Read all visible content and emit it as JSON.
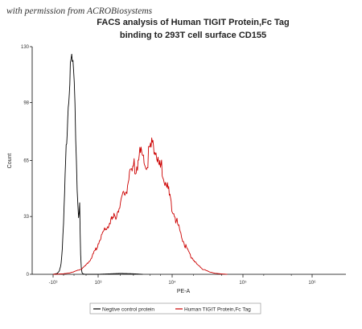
{
  "watermark": "with permission from ACROBiosystems",
  "chart_data": {
    "type": "line",
    "title_line1": "FACS analysis of Human TIGIT Protein,Fc Tag",
    "title_line2": "binding to 293T cell surface CD155",
    "xlabel": "PE-A",
    "ylabel": "Count",
    "ylim": [
      0,
      130
    ],
    "y_ticks": [
      "0",
      "33",
      "65",
      "98",
      "130"
    ],
    "y_tick_values": [
      0,
      33,
      65,
      98,
      130
    ],
    "x_ticks": [
      "-10³",
      "10³",
      "10⁴",
      "10⁵",
      "10⁶"
    ],
    "x_scale": "biexponential",
    "grid": false,
    "legend_position": "bottom",
    "series": [
      {
        "name": "Negtive control protein",
        "color": "#000000",
        "points": [
          [
            -1000,
            0
          ],
          [
            -800,
            0.5
          ],
          [
            -700,
            2
          ],
          [
            -620,
            6
          ],
          [
            -560,
            14
          ],
          [
            -500,
            28
          ],
          [
            -450,
            45
          ],
          [
            -400,
            62
          ],
          [
            -350,
            78
          ],
          [
            -300,
            93
          ],
          [
            -250,
            104
          ],
          [
            -200,
            112
          ],
          [
            -150,
            118
          ],
          [
            -110,
            124
          ],
          [
            -80,
            119
          ],
          [
            -50,
            121
          ],
          [
            -20,
            113
          ],
          [
            10,
            104
          ],
          [
            40,
            92
          ],
          [
            70,
            80
          ],
          [
            100,
            66
          ],
          [
            130,
            50
          ],
          [
            160,
            40
          ],
          [
            190,
            34
          ],
          [
            215,
            38
          ],
          [
            235,
            42
          ],
          [
            255,
            22
          ],
          [
            275,
            11
          ],
          [
            300,
            4
          ],
          [
            330,
            1
          ],
          [
            370,
            0.3
          ],
          [
            450,
            0
          ],
          [
            1000,
            0
          ],
          [
            2000,
            0.5
          ],
          [
            3000,
            0.3
          ],
          [
            4000,
            0
          ]
        ]
      },
      {
        "name": "Human TIGIT Protein,Fc Tag",
        "color": "#cc0000",
        "points": [
          [
            -1000,
            0
          ],
          [
            -500,
            0.3
          ],
          [
            -200,
            0.8
          ],
          [
            0,
            1.5
          ],
          [
            150,
            2.2
          ],
          [
            300,
            3
          ],
          [
            450,
            4.5
          ],
          [
            600,
            7
          ],
          [
            750,
            10
          ],
          [
            900,
            14
          ],
          [
            1000,
            18
          ],
          [
            1200,
            24
          ],
          [
            1400,
            29
          ],
          [
            1700,
            33
          ],
          [
            2000,
            40
          ],
          [
            2300,
            46
          ],
          [
            2600,
            54
          ],
          [
            3000,
            60
          ],
          [
            3400,
            65
          ],
          [
            3800,
            69
          ],
          [
            4100,
            66
          ],
          [
            4400,
            62
          ],
          [
            4800,
            67
          ],
          [
            5200,
            72
          ],
          [
            5600,
            76
          ],
          [
            5900,
            72
          ],
          [
            6200,
            67
          ],
          [
            6700,
            62
          ],
          [
            7200,
            60
          ],
          [
            7800,
            55
          ],
          [
            8500,
            50
          ],
          [
            9500,
            42
          ],
          [
            11000,
            33
          ],
          [
            13000,
            24
          ],
          [
            15000,
            17
          ],
          [
            18000,
            11
          ],
          [
            22000,
            6
          ],
          [
            27000,
            3
          ],
          [
            33000,
            1.5
          ],
          [
            40000,
            0.6
          ],
          [
            50000,
            0.2
          ],
          [
            60000,
            0
          ]
        ]
      }
    ]
  }
}
